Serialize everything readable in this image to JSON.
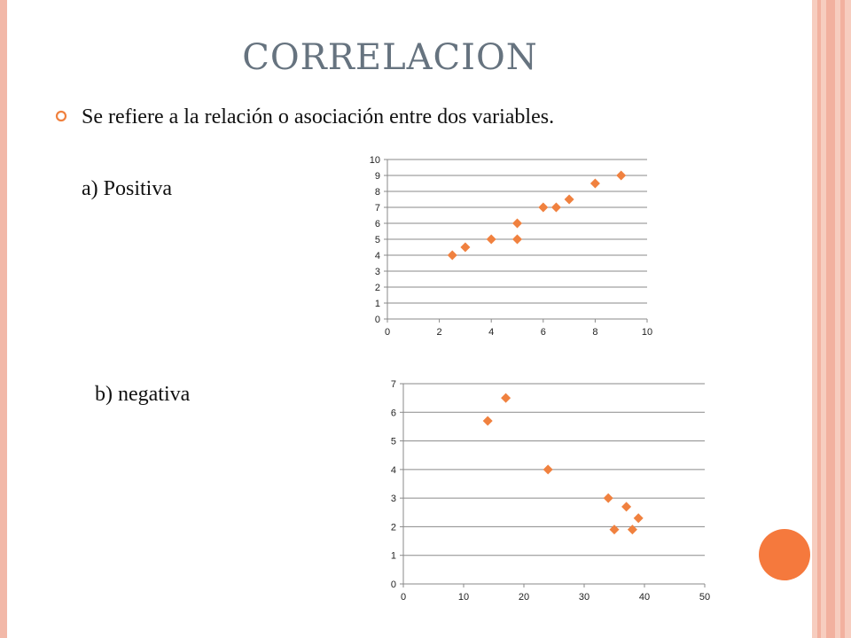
{
  "slide": {
    "title": "CORRELACION",
    "bullet_text": "Se refiere a la relación o asociación entre dos variables.",
    "label_a": "a) Positiva",
    "label_b": "b) negativa"
  },
  "colors": {
    "title": "#66737f",
    "marker": "#f0813f",
    "grid": "#8a8a8a",
    "frame": "#f2b8a8",
    "circle": "#f5793d"
  },
  "icons": {
    "bullet": "hollow-circle-bullet-icon"
  },
  "chart_data": [
    {
      "type": "scatter",
      "title": "",
      "xlabel": "",
      "ylabel": "",
      "xlim": [
        0,
        10
      ],
      "ylim": [
        0,
        10
      ],
      "x_ticks": [
        0,
        2,
        4,
        6,
        8,
        10
      ],
      "y_ticks": [
        0,
        1,
        2,
        3,
        4,
        5,
        6,
        7,
        8,
        9,
        10
      ],
      "grid": "horizontal",
      "marker": "diamond",
      "points": [
        {
          "x": 2.5,
          "y": 4
        },
        {
          "x": 3,
          "y": 4.5
        },
        {
          "x": 4,
          "y": 5
        },
        {
          "x": 5,
          "y": 5
        },
        {
          "x": 5,
          "y": 6
        },
        {
          "x": 6,
          "y": 7
        },
        {
          "x": 6.5,
          "y": 7
        },
        {
          "x": 7,
          "y": 7.5
        },
        {
          "x": 8,
          "y": 8.5
        },
        {
          "x": 9,
          "y": 9
        }
      ]
    },
    {
      "type": "scatter",
      "title": "",
      "xlabel": "",
      "ylabel": "",
      "xlim": [
        0,
        50
      ],
      "ylim": [
        0,
        7
      ],
      "x_ticks": [
        0,
        10,
        20,
        30,
        40,
        50
      ],
      "y_ticks": [
        0,
        1,
        2,
        3,
        4,
        5,
        6,
        7
      ],
      "grid": "horizontal",
      "marker": "diamond",
      "points": [
        {
          "x": 14,
          "y": 5.7
        },
        {
          "x": 17,
          "y": 6.5
        },
        {
          "x": 24,
          "y": 4
        },
        {
          "x": 34,
          "y": 3
        },
        {
          "x": 35,
          "y": 1.9
        },
        {
          "x": 37,
          "y": 2.7
        },
        {
          "x": 38,
          "y": 1.9
        },
        {
          "x": 39,
          "y": 2.3
        }
      ]
    }
  ]
}
